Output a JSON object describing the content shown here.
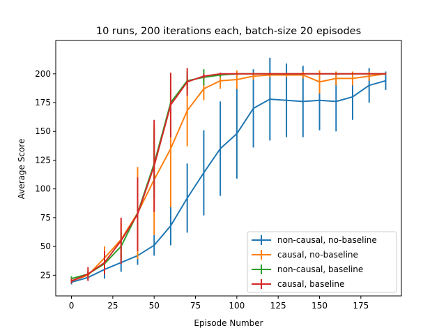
{
  "chart_data": {
    "type": "line",
    "title": "10 runs, 200 iterations each, batch-size 20 episodes",
    "xlabel": "Episode Number",
    "ylabel": "Average Score",
    "xlim": [
      -9.5,
      199.5
    ],
    "ylim": [
      7,
      229
    ],
    "xticks": [
      0,
      25,
      50,
      75,
      100,
      125,
      150,
      175
    ],
    "yticks": [
      25,
      50,
      75,
      100,
      125,
      150,
      175,
      200
    ],
    "grid": false,
    "legend_position": "lower-right",
    "x": [
      0,
      10,
      20,
      30,
      40,
      50,
      60,
      70,
      80,
      90,
      100,
      110,
      120,
      130,
      140,
      150,
      160,
      170,
      180,
      190
    ],
    "series": [
      {
        "name": "non-causal, no-baseline",
        "color": "#1f77b4",
        "values": [
          19,
          23,
          30,
          36,
          42,
          51,
          68,
          92,
          114,
          135,
          148,
          170,
          178,
          177,
          176,
          177,
          176,
          180,
          190,
          194
        ],
        "err": [
          2,
          2,
          8,
          8,
          8,
          9,
          17,
          30,
          37,
          41,
          39,
          34,
          36,
          32,
          31,
          26,
          26,
          20,
          15,
          8
        ]
      },
      {
        "name": "causal, no-baseline",
        "color": "#ff7f0e",
        "values": [
          20,
          25,
          40,
          56,
          79,
          108,
          135,
          168,
          187,
          194,
          195,
          198,
          199,
          199,
          199,
          193,
          196,
          196,
          198,
          200
        ],
        "err": [
          2,
          3,
          10,
          15,
          40,
          48,
          51,
          31,
          10,
          7,
          8,
          3,
          2,
          2,
          3,
          10,
          6,
          6,
          4,
          1
        ]
      },
      {
        "name": "non-causal, baseline",
        "color": "#2ca02c",
        "values": [
          22,
          26,
          35,
          50,
          79,
          122,
          175,
          194,
          197,
          199,
          200,
          200,
          200,
          200,
          200,
          200,
          200,
          200,
          200,
          200
        ],
        "err": [
          2,
          3,
          8,
          12,
          25,
          30,
          25,
          8,
          7,
          2,
          0,
          0,
          0,
          0,
          0,
          0,
          0,
          0,
          0,
          0
        ]
      },
      {
        "name": "causal, baseline",
        "color": "#d62728",
        "values": [
          20,
          26,
          36,
          55,
          78,
          120,
          173,
          193,
          198,
          200,
          200,
          200,
          200,
          200,
          200,
          200,
          200,
          200,
          200,
          200
        ],
        "err": [
          2,
          6,
          10,
          20,
          32,
          40,
          28,
          12,
          2,
          1,
          0,
          0,
          1,
          0,
          0,
          0,
          0,
          0,
          0,
          0
        ]
      }
    ]
  }
}
